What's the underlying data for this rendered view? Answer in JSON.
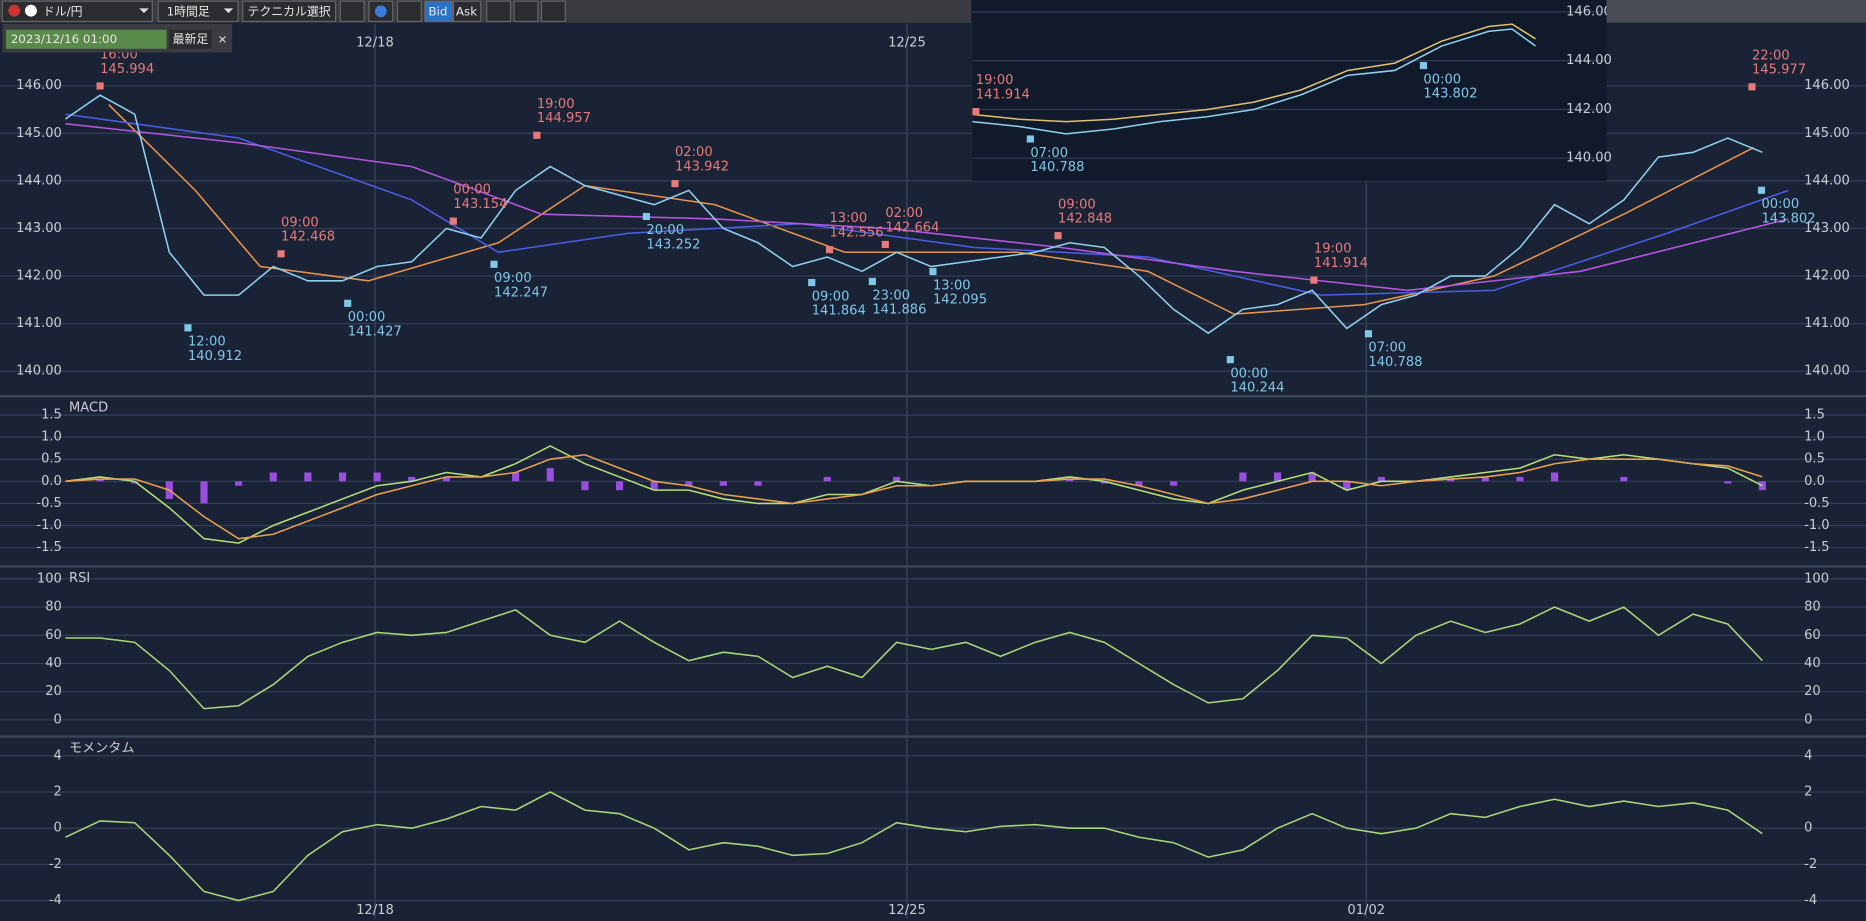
{
  "toolbar": {
    "pair": "ドル/円",
    "timeframe": "1時間足",
    "technical": "テクニカル選択",
    "bid": "Bid",
    "ask": "Ask",
    "date": "2023/12/16 01:00",
    "latest": "最新足",
    "close": "×"
  },
  "chart_data": [
    {
      "type": "line",
      "xlim": [
        0,
        400
      ],
      "ylim": [
        139.5,
        147.3
      ],
      "xticks": [
        {
          "value": 71.5,
          "label": "12/18"
        },
        {
          "value": 194.4,
          "label": "12/25"
        },
        {
          "value": 300.5,
          "label": "01/02"
        }
      ],
      "yticks": [
        {
          "value": 140,
          "label": "140.00"
        },
        {
          "value": 141,
          "label": "141.00"
        },
        {
          "value": 142,
          "label": "142.00"
        },
        {
          "value": 143,
          "label": "143.00"
        },
        {
          "value": 144,
          "label": "144.00"
        },
        {
          "value": 145,
          "label": "145.00"
        },
        {
          "value": 146,
          "label": "146.00"
        }
      ],
      "x": [
        0,
        8,
        16,
        24,
        32,
        40,
        48,
        56,
        64,
        72,
        80,
        88,
        96,
        104,
        112,
        120,
        128,
        136,
        144,
        152,
        160,
        168,
        176,
        184,
        192,
        200,
        208,
        216,
        224,
        232,
        240,
        248,
        256,
        264,
        272,
        280,
        288,
        296,
        304,
        312,
        320,
        328,
        336,
        344,
        352,
        360,
        368,
        376,
        384,
        392
      ],
      "series": [
        {
          "color": "#e8944a",
          "x": [
            10,
            30,
            45,
            70,
            100,
            120,
            150,
            180,
            220,
            250,
            270,
            300,
            330,
            360,
            390
          ],
          "values": [
            145.6,
            143.8,
            142.2,
            141.9,
            142.7,
            143.9,
            143.5,
            142.5,
            142.5,
            142.1,
            141.2,
            141.4,
            142.0,
            143.3,
            144.7
          ]
        },
        {
          "color": "#4a5ee8",
          "x": [
            0,
            40,
            80,
            100,
            130,
            170,
            210,
            250,
            290,
            330,
            370,
            398
          ],
          "values": [
            145.4,
            144.9,
            143.6,
            142.5,
            142.9,
            143.1,
            142.6,
            142.4,
            141.6,
            141.7,
            142.9,
            143.8
          ]
        },
        {
          "color": "#b456e0",
          "x": [
            0,
            40,
            80,
            110,
            150,
            190,
            230,
            270,
            310,
            350,
            398
          ],
          "values": [
            145.2,
            144.8,
            144.3,
            143.3,
            143.2,
            143.0,
            142.6,
            142.1,
            141.7,
            142.1,
            143.2
          ]
        },
        {
          "color": "#8fd0ee",
          "values": [
            145.3,
            145.8,
            145.4,
            142.5,
            141.6,
            141.6,
            142.2,
            141.9,
            141.9,
            142.2,
            142.3,
            143.0,
            142.8,
            143.8,
            144.3,
            143.9,
            143.7,
            143.5,
            143.8,
            143.0,
            142.7,
            142.2,
            142.4,
            142.1,
            142.5,
            142.2,
            142.3,
            142.4,
            142.5,
            142.7,
            142.6,
            142.0,
            141.3,
            140.8,
            141.3,
            141.4,
            141.7,
            140.9,
            141.4,
            141.6,
            142.0,
            142.0,
            142.6,
            143.5,
            143.1,
            143.6,
            144.5,
            144.6,
            144.9,
            144.6
          ]
        }
      ],
      "annotations": [
        {
          "kind": "high",
          "time": "16:00",
          "price": 145.994,
          "x": 8
        },
        {
          "kind": "low",
          "time": "12:00",
          "price": 140.912,
          "x": 28.3
        },
        {
          "kind": "high",
          "time": "09:00",
          "price": 142.468,
          "x": 49.8
        },
        {
          "kind": "low",
          "time": "00:00",
          "price": 141.427,
          "x": 65.2
        },
        {
          "kind": "high",
          "time": "00:00",
          "price": 143.154,
          "x": 89.6
        },
        {
          "kind": "low",
          "time": "09:00",
          "price": 142.247,
          "x": 99
        },
        {
          "kind": "high",
          "time": "19:00",
          "price": 144.957,
          "x": 108.9
        },
        {
          "kind": "low",
          "time": "20:00",
          "price": 143.252,
          "x": 134.2
        },
        {
          "kind": "high",
          "time": "02:00",
          "price": 143.942,
          "x": 140.8
        },
        {
          "kind": "low",
          "time": "09:00",
          "price": 141.864,
          "x": 172.4
        },
        {
          "kind": "high",
          "time": "13:00",
          "price": 142.556,
          "x": 176.5
        },
        {
          "kind": "low",
          "time": "23:00",
          "price": 141.886,
          "x": 186.4
        },
        {
          "kind": "high",
          "time": "02:00",
          "price": 142.664,
          "x": 189.4
        },
        {
          "kind": "low",
          "time": "13:00",
          "price": 142.095,
          "x": 200.4
        },
        {
          "kind": "high",
          "time": "09:00",
          "price": 142.848,
          "x": 229.3
        },
        {
          "kind": "low",
          "time": "00:00",
          "price": 140.244,
          "x": 269.1
        },
        {
          "kind": "high",
          "time": "19:00",
          "price": 141.914,
          "x": 288.4
        },
        {
          "kind": "low",
          "time": "07:00",
          "price": 140.788,
          "x": 301
        },
        {
          "kind": "high",
          "time": "22:00",
          "price": 145.977,
          "x": 389.6
        },
        {
          "kind": "low",
          "time": "00:00",
          "price": 143.802,
          "x": 391.8
        }
      ]
    },
    {
      "type": "line",
      "title": "MACD",
      "xlim": [
        0,
        400
      ],
      "ylim": [
        -1.9,
        1.9
      ],
      "yticks": [
        1.5,
        {
          "value": 1,
          "label": "1.0"
        },
        0.5,
        {
          "value": 0,
          "label": "0.0"
        },
        -0.5,
        {
          "value": -1,
          "label": "-1.0"
        },
        -1.5
      ],
      "x": [
        0,
        8,
        16,
        24,
        32,
        40,
        48,
        56,
        64,
        72,
        80,
        88,
        96,
        104,
        112,
        120,
        128,
        136,
        144,
        152,
        160,
        168,
        176,
        184,
        192,
        200,
        208,
        216,
        224,
        232,
        240,
        248,
        256,
        264,
        272,
        280,
        288,
        296,
        304,
        312,
        320,
        328,
        336,
        344,
        352,
        360,
        368,
        376,
        384,
        392
      ],
      "series": [
        {
          "type": "bar",
          "color": "#9a4ee0",
          "values": [
            0.0,
            0.05,
            -0.05,
            -0.4,
            -0.5,
            -0.1,
            0.2,
            0.2,
            0.2,
            0.2,
            0.1,
            0.1,
            0.0,
            0.2,
            0.3,
            -0.2,
            -0.2,
            -0.2,
            -0.1,
            -0.1,
            -0.1,
            0.0,
            0.1,
            0.0,
            0.1,
            0.0,
            0.0,
            0.0,
            0.0,
            0.05,
            -0.05,
            -0.1,
            -0.1,
            0.0,
            0.2,
            0.2,
            0.2,
            -0.2,
            0.1,
            0.0,
            0.05,
            0.1,
            0.1,
            0.2,
            0.0,
            0.1,
            0.0,
            0.0,
            -0.05,
            -0.2
          ]
        },
        {
          "color": "#b4e07a",
          "values": [
            0.0,
            0.1,
            0.0,
            -0.6,
            -1.3,
            -1.4,
            -1.0,
            -0.7,
            -0.4,
            -0.1,
            0.0,
            0.2,
            0.1,
            0.4,
            0.8,
            0.4,
            0.1,
            -0.2,
            -0.2,
            -0.4,
            -0.5,
            -0.5,
            -0.3,
            -0.3,
            0.0,
            -0.1,
            0.0,
            0.0,
            0.0,
            0.1,
            0.0,
            -0.2,
            -0.4,
            -0.5,
            -0.2,
            0.0,
            0.2,
            -0.2,
            0.0,
            0.0,
            0.1,
            0.2,
            0.3,
            0.6,
            0.5,
            0.6,
            0.5,
            0.4,
            0.3,
            -0.1
          ]
        },
        {
          "color": "#e8a050",
          "values": [
            0.0,
            0.05,
            0.05,
            -0.2,
            -0.8,
            -1.3,
            -1.2,
            -0.9,
            -0.6,
            -0.3,
            -0.1,
            0.1,
            0.1,
            0.2,
            0.5,
            0.6,
            0.3,
            0.0,
            -0.1,
            -0.3,
            -0.4,
            -0.5,
            -0.4,
            -0.3,
            -0.1,
            -0.1,
            0.0,
            0.0,
            0.0,
            0.05,
            0.05,
            -0.1,
            -0.3,
            -0.5,
            -0.4,
            -0.2,
            0.0,
            0.0,
            -0.1,
            0.0,
            0.05,
            0.1,
            0.2,
            0.4,
            0.5,
            0.5,
            0.5,
            0.4,
            0.35,
            0.1
          ]
        }
      ]
    },
    {
      "type": "line",
      "title": "RSI",
      "xlim": [
        0,
        400
      ],
      "ylim": [
        -11,
        108
      ],
      "yticks": [
        0,
        20,
        40,
        60,
        80,
        100
      ],
      "x": [
        0,
        8,
        16,
        24,
        32,
        40,
        48,
        56,
        64,
        72,
        80,
        88,
        96,
        104,
        112,
        120,
        128,
        136,
        144,
        152,
        160,
        168,
        176,
        184,
        192,
        200,
        208,
        216,
        224,
        232,
        240,
        248,
        256,
        264,
        272,
        280,
        288,
        296,
        304,
        312,
        320,
        328,
        336,
        344,
        352,
        360,
        368,
        376,
        384,
        392
      ],
      "series": [
        {
          "color": "#a8d878",
          "values": [
            58,
            58,
            55,
            35,
            8,
            10,
            25,
            45,
            55,
            62,
            60,
            62,
            70,
            78,
            60,
            55,
            70,
            55,
            42,
            48,
            45,
            30,
            38,
            30,
            55,
            50,
            55,
            45,
            55,
            62,
            55,
            40,
            25,
            12,
            15,
            35,
            60,
            58,
            40,
            60,
            70,
            62,
            68,
            80,
            70,
            80,
            60,
            75,
            68,
            42
          ]
        }
      ]
    },
    {
      "type": "line",
      "title": "モメンタム",
      "xlim": [
        0,
        400
      ],
      "ylim": [
        -5,
        5
      ],
      "xticks": [
        {
          "value": 71.5,
          "label": "12/18"
        },
        {
          "value": 194.4,
          "label": "12/25"
        },
        {
          "value": 300.5,
          "label": "01/02"
        }
      ],
      "yticks": [
        -4,
        -2,
        0,
        2,
        4
      ],
      "x": [
        0,
        8,
        16,
        24,
        32,
        40,
        48,
        56,
        64,
        72,
        80,
        88,
        96,
        104,
        112,
        120,
        128,
        136,
        144,
        152,
        160,
        168,
        176,
        184,
        192,
        200,
        208,
        216,
        224,
        232,
        240,
        248,
        256,
        264,
        272,
        280,
        288,
        296,
        304,
        312,
        320,
        328,
        336,
        344,
        352,
        360,
        368,
        376,
        384,
        392
      ],
      "series": [
        {
          "color": "#a8d878",
          "values": [
            -0.5,
            0.4,
            0.3,
            -1.5,
            -3.5,
            -4.0,
            -3.5,
            -1.5,
            -0.2,
            0.2,
            0.0,
            0.5,
            1.2,
            1.0,
            2.0,
            1.0,
            0.8,
            0.0,
            -1.2,
            -0.8,
            -1.0,
            -1.5,
            -1.4,
            -0.8,
            0.3,
            0.0,
            -0.2,
            0.1,
            0.2,
            0.0,
            0.0,
            -0.5,
            -0.8,
            -1.6,
            -1.2,
            0.0,
            0.8,
            0.0,
            -0.3,
            0.0,
            0.8,
            0.6,
            1.2,
            1.6,
            1.2,
            1.5,
            1.2,
            1.4,
            1.0,
            -0.3
          ]
        }
      ]
    },
    {
      "type": "line",
      "xlim": [
        0,
        100
      ],
      "ylim": [
        139.07,
        146.49
      ],
      "yticks": [
        {
          "value": 140,
          "label": "140.00"
        },
        {
          "value": 142,
          "label": "142.00"
        },
        {
          "value": 144,
          "label": "144.00"
        },
        {
          "value": 146,
          "label": "146.00"
        }
      ],
      "x": [
        0,
        8,
        16,
        24,
        32,
        40,
        48,
        56,
        64,
        72,
        80,
        88,
        92,
        96
      ],
      "series": [
        {
          "color": "#e0c070",
          "values": [
            141.8,
            141.6,
            141.5,
            141.6,
            141.8,
            142.0,
            142.3,
            142.8,
            143.6,
            143.9,
            144.8,
            145.4,
            145.5,
            144.9
          ]
        },
        {
          "color": "#8fd0ee",
          "values": [
            141.5,
            141.3,
            141.0,
            141.2,
            141.5,
            141.7,
            142.0,
            142.6,
            143.4,
            143.6,
            144.6,
            145.2,
            145.3,
            144.6
          ]
        }
      ],
      "annotations": [
        {
          "kind": "high",
          "time": "19:00",
          "price": 141.914,
          "x": 0.6
        },
        {
          "kind": "low",
          "time": "07:00",
          "price": 140.788,
          "x": 9.9
        },
        {
          "kind": "low",
          "time": "00:00",
          "price": 143.802,
          "x": 76.9
        }
      ]
    }
  ]
}
